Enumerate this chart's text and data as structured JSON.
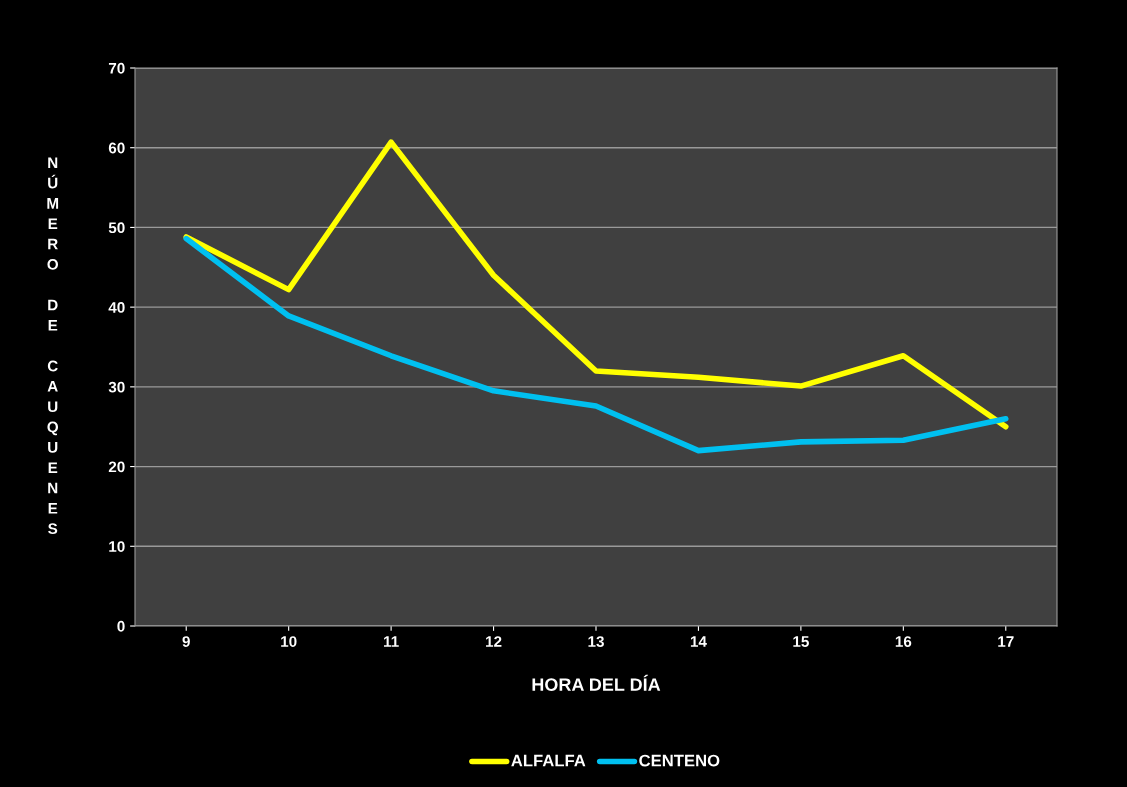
{
  "chart_data": {
    "type": "line",
    "xlabel": "HORA DEL DÍA",
    "ylabel": "NÚMERO DE CAUQUENES",
    "categories": [
      "9",
      "10",
      "11",
      "12",
      "13",
      "14",
      "15",
      "16",
      "17"
    ],
    "series": [
      {
        "name": "ALFALFA",
        "color": "#ffff00",
        "values": [
          48.8,
          42.2,
          60.7,
          44.0,
          32.0,
          31.2,
          30.1,
          33.9,
          25.0
        ]
      },
      {
        "name": "CENTENO",
        "color": "#00c0f0",
        "values": [
          48.6,
          38.9,
          33.9,
          29.5,
          27.6,
          22.0,
          23.1,
          23.3,
          26.0
        ]
      }
    ],
    "ylim": [
      0,
      70
    ],
    "yticks": [
      0,
      10,
      20,
      30,
      40,
      50,
      60,
      70
    ],
    "grid": "y",
    "legend": "bottom",
    "marker": "none",
    "line_style": "solid"
  }
}
